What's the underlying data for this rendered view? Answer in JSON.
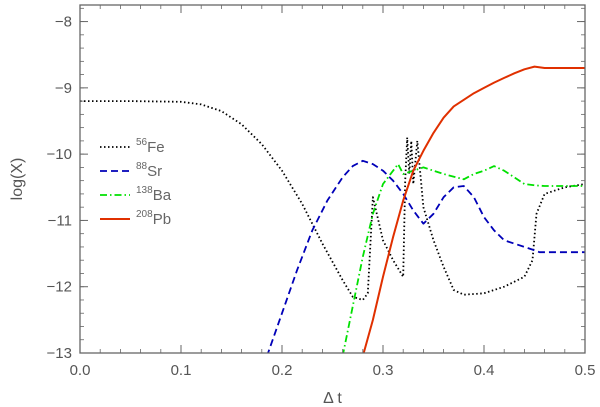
{
  "chart_data": {
    "type": "line",
    "xlabel": "Δ t",
    "ylabel": "log(X)",
    "xlim": [
      0,
      0.5
    ],
    "ylim": [
      -13,
      -7.75
    ],
    "x_ticks": [
      0.0,
      0.1,
      0.2,
      0.3,
      0.4,
      0.5
    ],
    "x_tick_labels": [
      "0.0",
      "0.1",
      "0.2",
      "0.3",
      "0.4",
      "0.5"
    ],
    "y_ticks": [
      -13,
      -12,
      -11,
      -10,
      -9,
      -8
    ],
    "y_tick_labels": [
      "−13",
      "−12",
      "−11",
      "−10",
      "−9",
      "−8"
    ],
    "grid": false,
    "legend_position": "left",
    "series": [
      {
        "name_sup": "56",
        "name_base": "Fe",
        "color": "#000000",
        "dash": "dotted",
        "x": [
          0.0,
          0.05,
          0.1,
          0.12,
          0.14,
          0.16,
          0.18,
          0.2,
          0.22,
          0.24,
          0.26,
          0.27,
          0.28,
          0.285,
          0.29,
          0.3,
          0.31,
          0.32,
          0.322,
          0.324,
          0.326,
          0.328,
          0.33,
          0.334,
          0.34,
          0.35,
          0.36,
          0.37,
          0.38,
          0.4,
          0.42,
          0.44,
          0.448,
          0.452,
          0.46,
          0.48,
          0.5
        ],
        "y": [
          -9.2,
          -9.2,
          -9.21,
          -9.25,
          -9.35,
          -9.55,
          -9.85,
          -10.25,
          -10.75,
          -11.35,
          -11.9,
          -12.15,
          -12.2,
          -12.1,
          -10.65,
          -11.3,
          -11.6,
          -11.85,
          -10.4,
          -9.75,
          -10.3,
          -9.8,
          -10.45,
          -9.8,
          -10.8,
          -11.3,
          -11.7,
          -12.05,
          -12.12,
          -12.1,
          -12.0,
          -11.85,
          -11.6,
          -10.9,
          -10.6,
          -10.5,
          -10.45
        ]
      },
      {
        "name_sup": "88",
        "name_base": "Sr",
        "color": "#0000b8",
        "dash": "dashed",
        "x": [
          0.185,
          0.2,
          0.215,
          0.23,
          0.245,
          0.26,
          0.27,
          0.28,
          0.29,
          0.3,
          0.31,
          0.32,
          0.33,
          0.34,
          0.35,
          0.36,
          0.37,
          0.38,
          0.39,
          0.4,
          0.41,
          0.42,
          0.43,
          0.44,
          0.45,
          0.455,
          0.46,
          0.5
        ],
        "y": [
          -13.05,
          -12.4,
          -11.75,
          -11.15,
          -10.7,
          -10.35,
          -10.18,
          -10.1,
          -10.15,
          -10.25,
          -10.4,
          -10.6,
          -10.85,
          -11.05,
          -10.9,
          -10.65,
          -10.5,
          -10.48,
          -10.65,
          -10.95,
          -11.15,
          -11.3,
          -11.35,
          -11.4,
          -11.45,
          -11.48,
          -11.48,
          -11.48
        ]
      },
      {
        "name_sup": "138",
        "name_base": "Ba",
        "color": "#00e000",
        "dash": "dashdot",
        "x": [
          0.26,
          0.27,
          0.28,
          0.29,
          0.3,
          0.31,
          0.315,
          0.32,
          0.33,
          0.34,
          0.36,
          0.38,
          0.39,
          0.4,
          0.41,
          0.42,
          0.43,
          0.44,
          0.45,
          0.46,
          0.48,
          0.5
        ],
        "y": [
          -13.05,
          -12.3,
          -11.55,
          -10.9,
          -10.45,
          -10.25,
          -10.15,
          -10.3,
          -10.25,
          -10.2,
          -10.3,
          -10.38,
          -10.3,
          -10.25,
          -10.18,
          -10.25,
          -10.35,
          -10.45,
          -10.47,
          -10.48,
          -10.48,
          -10.48
        ]
      },
      {
        "name_sup": "208",
        "name_base": "Pb",
        "color": "#e03000",
        "dash": "solid",
        "x": [
          0.28,
          0.29,
          0.3,
          0.31,
          0.32,
          0.33,
          0.34,
          0.35,
          0.36,
          0.37,
          0.38,
          0.39,
          0.4,
          0.41,
          0.42,
          0.43,
          0.44,
          0.45,
          0.46,
          0.47,
          0.48,
          0.5
        ],
        "y": [
          -13.05,
          -12.5,
          -11.85,
          -11.25,
          -10.7,
          -10.25,
          -9.95,
          -9.68,
          -9.45,
          -9.28,
          -9.18,
          -9.08,
          -9.0,
          -8.92,
          -8.85,
          -8.78,
          -8.72,
          -8.68,
          -8.7,
          -8.7,
          -8.7,
          -8.7
        ]
      }
    ]
  }
}
